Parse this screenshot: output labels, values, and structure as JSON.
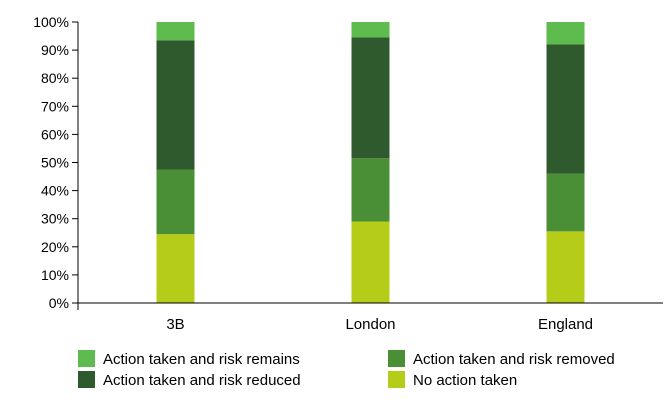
{
  "chart_data": {
    "type": "bar",
    "stacked": true,
    "categories": [
      "3B",
      "London",
      "England"
    ],
    "series": [
      {
        "name": "No action taken",
        "color": "#b5cc18",
        "values": [
          24.5,
          29,
          25.5
        ]
      },
      {
        "name": "Action taken and risk removed",
        "color": "#4a8f35",
        "values": [
          23,
          22.5,
          20.5
        ]
      },
      {
        "name": "Action taken and risk reduced",
        "color": "#2f5a2e",
        "values": [
          46,
          43,
          46
        ]
      },
      {
        "name": "Action taken and risk remains",
        "color": "#5ebb4d",
        "values": [
          6.5,
          5.5,
          8
        ]
      }
    ],
    "yticks": [
      "0%",
      "10%",
      "20%",
      "30%",
      "40%",
      "50%",
      "60%",
      "70%",
      "80%",
      "90%",
      "100%"
    ],
    "ylim": [
      0,
      100
    ],
    "legend": {
      "placement": "bottom",
      "order": [
        3,
        1,
        2,
        0
      ]
    }
  }
}
